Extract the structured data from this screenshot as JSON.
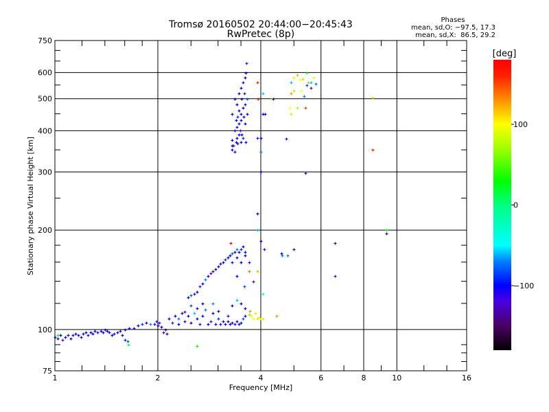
{
  "chart_data": {
    "type": "scatter",
    "title": "Tromsø 20160502 20:44:00−20:45:43",
    "subtitle": "RwPretec (8p)",
    "stats": {
      "heading": "Phases",
      "o_line": "mean, sd,O: −97.5, 17.3",
      "x_line": "mean, sd,X:  86.5, 29.2"
    },
    "xlabel": "Frequency [MHz]",
    "ylabel": "Stationary phase Virtual Height [km]",
    "xscale": "log",
    "yscale": "log",
    "xlim": [
      1,
      16
    ],
    "ylim": [
      75,
      750
    ],
    "xticks": [
      1,
      2,
      4,
      6,
      8,
      10,
      16
    ],
    "xtick_labels": [
      "1",
      "2",
      "4",
      "6",
      "8",
      "10",
      "16"
    ],
    "xgrid": [
      2,
      4,
      6,
      8,
      10
    ],
    "xminor": [
      1.2,
      1.4,
      1.6,
      1.8,
      2.5,
      3,
      3.5,
      5,
      7,
      9,
      12,
      14
    ],
    "yticks": [
      75,
      100,
      200,
      300,
      400,
      500,
      600,
      750
    ],
    "ytick_labels": [
      "75",
      "100",
      "200",
      "300",
      "400",
      "500",
      "600",
      "750"
    ],
    "ygrid": [
      100,
      200,
      300,
      400,
      500,
      600
    ],
    "yminor": [
      80,
      85,
      90,
      120,
      140,
      160,
      180,
      250,
      350,
      450,
      550,
      650,
      700
    ],
    "grid": true,
    "colorbar": {
      "label": "[deg]",
      "range": [
        -180,
        180
      ],
      "ticks": [
        100,
        0,
        -100
      ],
      "tick_labels": [
        "100",
        "0",
        "−100"
      ]
    },
    "point_fields": [
      "frequency_MHz",
      "height_km",
      "phase_deg"
    ],
    "points": [
      [
        1.0,
        95,
        -110
      ],
      [
        1.02,
        94,
        -105
      ],
      [
        1.04,
        96,
        -100
      ],
      [
        1.05,
        93,
        -120
      ],
      [
        1.07,
        95,
        -100
      ],
      [
        1.09,
        96,
        -110
      ],
      [
        1.11,
        94,
        -100
      ],
      [
        1.13,
        96,
        -95
      ],
      [
        1.15,
        97,
        -100
      ],
      [
        1.17,
        96,
        -105
      ],
      [
        1.19,
        95,
        -110
      ],
      [
        1.21,
        97,
        -100
      ],
      [
        1.23,
        98,
        -100
      ],
      [
        1.25,
        96,
        -115
      ],
      [
        1.27,
        98,
        -100
      ],
      [
        1.29,
        97,
        -105
      ],
      [
        1.31,
        99,
        -100
      ],
      [
        1.33,
        98,
        -110
      ],
      [
        1.36,
        99,
        -100
      ],
      [
        1.38,
        98,
        -100
      ],
      [
        1.4,
        100,
        -105
      ],
      [
        1.42,
        99,
        -100
      ],
      [
        1.44,
        98,
        -110
      ],
      [
        1.47,
        96,
        -100
      ],
      [
        1.49,
        97,
        -95
      ],
      [
        1.52,
        98,
        -100
      ],
      [
        1.55,
        99,
        -105
      ],
      [
        1.57,
        96,
        -100
      ],
      [
        1.6,
        93,
        -90
      ],
      [
        1.63,
        92,
        -80
      ],
      [
        1.64,
        90,
        10
      ],
      [
        1.02,
        96,
        20
      ],
      [
        1.6,
        100,
        -100
      ],
      [
        1.65,
        101,
        -100
      ],
      [
        1.7,
        101,
        -110
      ],
      [
        1.75,
        103,
        -100
      ],
      [
        1.8,
        104,
        -90
      ],
      [
        1.85,
        105,
        -100
      ],
      [
        1.9,
        104,
        -70
      ],
      [
        1.95,
        104,
        -110
      ],
      [
        2.0,
        103,
        -100
      ],
      [
        2.02,
        105,
        -120
      ],
      [
        2.05,
        102,
        -100
      ],
      [
        2.08,
        98,
        -130
      ],
      [
        2.1,
        100,
        -100
      ],
      [
        1.98,
        106,
        -90
      ],
      [
        2.12,
        97,
        -150
      ],
      [
        2.15,
        108,
        -100
      ],
      [
        2.2,
        105,
        -90
      ],
      [
        2.25,
        110,
        -100
      ],
      [
        2.3,
        108,
        -70
      ],
      [
        2.35,
        112,
        -100
      ],
      [
        2.4,
        106,
        -110
      ],
      [
        2.45,
        110,
        -100
      ],
      [
        2.5,
        105,
        -100
      ],
      [
        2.55,
        112,
        -60
      ],
      [
        2.6,
        108,
        -100
      ],
      [
        2.65,
        104,
        -110
      ],
      [
        2.7,
        110,
        -100
      ],
      [
        2.75,
        115,
        -70
      ],
      [
        2.8,
        104,
        -100
      ],
      [
        2.85,
        106,
        -120
      ],
      [
        2.9,
        112,
        -100
      ],
      [
        2.95,
        104,
        -100
      ],
      [
        3.0,
        108,
        -90
      ],
      [
        3.05,
        104,
        -110
      ],
      [
        3.1,
        106,
        -100
      ],
      [
        3.15,
        104,
        -100
      ],
      [
        3.2,
        110,
        -120
      ],
      [
        3.25,
        104,
        -100
      ],
      [
        3.3,
        105,
        -100
      ],
      [
        3.35,
        104,
        -110
      ],
      [
        3.4,
        106,
        -100
      ],
      [
        3.45,
        104,
        -100
      ],
      [
        3.5,
        105,
        -100
      ],
      [
        3.55,
        108,
        -80
      ],
      [
        3.6,
        110,
        -100
      ],
      [
        2.5,
        118,
        -80
      ],
      [
        2.7,
        120,
        -100
      ],
      [
        2.9,
        120,
        -70
      ],
      [
        3.3,
        118,
        -100
      ],
      [
        3.4,
        123,
        -60
      ],
      [
        3.5,
        120,
        -100
      ],
      [
        3.6,
        116,
        -100
      ],
      [
        2.6,
        116,
        -110
      ],
      [
        3.0,
        114,
        -100
      ],
      [
        3.2,
        106,
        -100
      ],
      [
        2.3,
        104,
        -100
      ],
      [
        2.4,
        113,
        -120
      ],
      [
        3.7,
        111,
        60
      ],
      [
        3.75,
        110,
        90
      ],
      [
        3.8,
        108,
        100
      ],
      [
        3.85,
        112,
        80
      ],
      [
        3.9,
        108,
        110
      ],
      [
        4.05,
        108,
        110
      ],
      [
        3.95,
        109,
        90
      ],
      [
        3.72,
        114,
        130
      ],
      [
        4.0,
        108,
        95
      ],
      [
        2.45,
        125,
        -100
      ],
      [
        2.5,
        127,
        -80
      ],
      [
        2.55,
        128,
        -110
      ],
      [
        2.6,
        130,
        -100
      ],
      [
        2.65,
        135,
        -90
      ],
      [
        2.7,
        138,
        -100
      ],
      [
        2.75,
        142,
        -70
      ],
      [
        2.8,
        145,
        -100
      ],
      [
        2.85,
        148,
        -120
      ],
      [
        2.9,
        150,
        -140
      ],
      [
        2.95,
        152,
        -100
      ],
      [
        3.0,
        155,
        -100
      ],
      [
        3.05,
        158,
        -110
      ],
      [
        3.1,
        160,
        -100
      ],
      [
        3.15,
        163,
        -90
      ],
      [
        3.2,
        165,
        -100
      ],
      [
        3.25,
        168,
        -100
      ],
      [
        3.3,
        170,
        -80
      ],
      [
        3.35,
        172,
        -100
      ],
      [
        3.4,
        175,
        -70
      ],
      [
        3.45,
        172,
        -100
      ],
      [
        3.5,
        175,
        -90
      ],
      [
        3.55,
        178,
        -100
      ],
      [
        3.6,
        172,
        -100
      ],
      [
        3.3,
        160,
        -110
      ],
      [
        3.4,
        165,
        -100
      ],
      [
        3.5,
        160,
        -100
      ],
      [
        3.6,
        168,
        -100
      ],
      [
        3.27,
        183,
        175
      ],
      [
        3.7,
        150,
        140
      ],
      [
        3.58,
        135,
        -80
      ],
      [
        3.7,
        160,
        -130
      ],
      [
        3.4,
        145,
        -100
      ],
      [
        3.3,
        350,
        -100
      ],
      [
        3.32,
        360,
        -120
      ],
      [
        3.35,
        345,
        -110
      ],
      [
        3.38,
        370,
        -100
      ],
      [
        3.4,
        380,
        -100
      ],
      [
        3.42,
        365,
        -130
      ],
      [
        3.45,
        390,
        -100
      ],
      [
        3.3,
        375,
        -100
      ],
      [
        3.35,
        400,
        -100
      ],
      [
        3.4,
        410,
        -110
      ],
      [
        3.45,
        420,
        -100
      ],
      [
        3.5,
        430,
        -100
      ],
      [
        3.48,
        400,
        -120
      ],
      [
        3.52,
        390,
        -100
      ],
      [
        3.55,
        380,
        -90
      ],
      [
        3.5,
        450,
        -100
      ],
      [
        3.55,
        470,
        -100
      ],
      [
        3.6,
        480,
        -110
      ],
      [
        3.45,
        460,
        -100
      ],
      [
        3.4,
        480,
        -100
      ],
      [
        3.35,
        500,
        -100
      ],
      [
        3.45,
        520,
        -100
      ],
      [
        3.5,
        540,
        -100
      ],
      [
        3.55,
        560,
        -110
      ],
      [
        3.6,
        580,
        -100
      ],
      [
        3.62,
        600,
        -100
      ],
      [
        3.63,
        640,
        -90
      ],
      [
        3.3,
        450,
        -100
      ],
      [
        3.6,
        420,
        -100
      ],
      [
        3.58,
        520,
        -120
      ],
      [
        3.65,
        500,
        -80
      ],
      [
        3.38,
        430,
        -100
      ],
      [
        3.42,
        440,
        -90
      ],
      [
        3.3,
        360,
        -100
      ],
      [
        3.5,
        370,
        -100
      ],
      [
        3.62,
        370,
        -100
      ],
      [
        3.65,
        450,
        -100
      ],
      [
        3.52,
        500,
        -100
      ],
      [
        3.57,
        440,
        -100
      ],
      [
        3.9,
        560,
        160
      ],
      [
        3.92,
        500,
        160
      ],
      [
        4.05,
        520,
        -60
      ],
      [
        4.05,
        450,
        -100
      ],
      [
        4.12,
        450,
        -100
      ],
      [
        4.0,
        380,
        -100
      ],
      [
        3.9,
        380,
        -120
      ],
      [
        4.3,
        500,
        80
      ],
      [
        4.35,
        500,
        -130
      ],
      [
        4.75,
        378,
        -130
      ],
      [
        4.0,
        300,
        -100
      ],
      [
        3.9,
        225,
        -100
      ],
      [
        5.4,
        298,
        -130
      ],
      [
        4.0,
        345,
        -70
      ],
      [
        4.9,
        560,
        -60
      ],
      [
        5.0,
        580,
        90
      ],
      [
        5.1,
        590,
        120
      ],
      [
        5.2,
        570,
        100
      ],
      [
        5.3,
        575,
        70
      ],
      [
        5.45,
        600,
        40
      ],
      [
        5.5,
        560,
        120
      ],
      [
        5.6,
        560,
        -60
      ],
      [
        5.7,
        580,
        90
      ],
      [
        5.8,
        555,
        -70
      ],
      [
        5.25,
        530,
        100
      ],
      [
        5.0,
        530,
        70
      ],
      [
        5.35,
        510,
        -70
      ],
      [
        5.4,
        470,
        150
      ],
      [
        4.85,
        470,
        100
      ],
      [
        4.9,
        450,
        80
      ],
      [
        5.1,
        470,
        70
      ],
      [
        4.9,
        520,
        130
      ],
      [
        5.6,
        540,
        -120
      ],
      [
        5.45,
        550,
        -80
      ],
      [
        8.5,
        505,
        110
      ],
      [
        8.5,
        350,
        160
      ],
      [
        3.9,
        200,
        -60
      ],
      [
        4.0,
        185,
        -100
      ],
      [
        4.1,
        175,
        -120
      ],
      [
        4.6,
        170,
        -100
      ],
      [
        4.62,
        168,
        -70
      ],
      [
        4.8,
        168,
        -70
      ],
      [
        5.0,
        175,
        -140
      ],
      [
        6.6,
        183,
        -130
      ],
      [
        6.6,
        145,
        -90
      ],
      [
        9.3,
        200,
        30
      ],
      [
        9.3,
        195,
        -140
      ],
      [
        3.9,
        150,
        120
      ],
      [
        3.8,
        140,
        -120
      ],
      [
        4.05,
        128,
        -40
      ],
      [
        4.45,
        110,
        130
      ],
      [
        2.6,
        89,
        30
      ]
    ]
  }
}
